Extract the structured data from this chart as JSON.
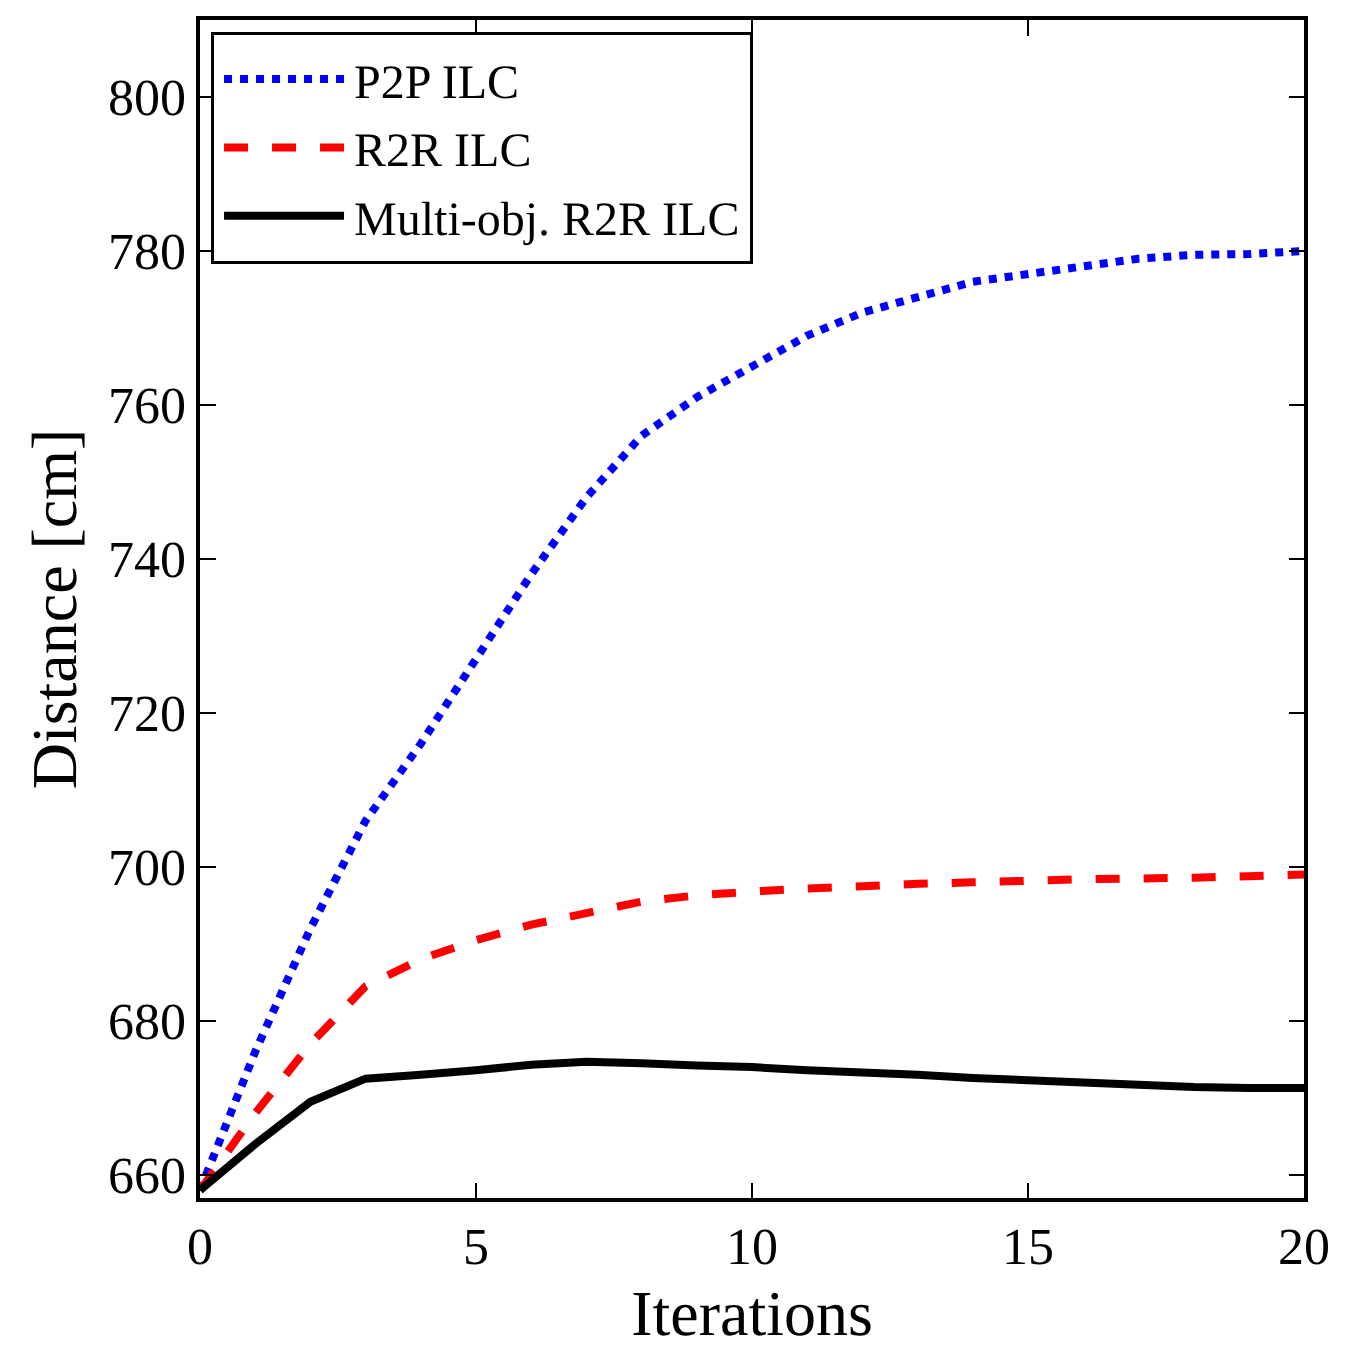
{
  "chart_data": {
    "type": "line",
    "xlabel": "Iterations",
    "ylabel": "Distance [cm]",
    "x": [
      0,
      1,
      2,
      3,
      4,
      5,
      6,
      7,
      8,
      9,
      10,
      11,
      12,
      13,
      14,
      15,
      16,
      17,
      18,
      19,
      20
    ],
    "xlim": [
      0,
      20
    ],
    "xticks": [
      0,
      5,
      10,
      15,
      20
    ],
    "ylim": [
      657,
      810
    ],
    "yticks": [
      660,
      680,
      700,
      720,
      740,
      760,
      780,
      800
    ],
    "legend": "top left",
    "marker": "none",
    "series": [
      {
        "name": "P2P ILC",
        "color": "#0000ff",
        "line_style": "dotted",
        "values": [
          658,
          676,
          692,
          706,
          716,
          727,
          738,
          748,
          756,
          761,
          765,
          769,
          772,
          774,
          776,
          777,
          778,
          779,
          779.5,
          779.6,
          780
        ]
      },
      {
        "name": "R2R ILC",
        "color": "#ff0000",
        "line_style": "dashed",
        "values": [
          658,
          668,
          677,
          684.5,
          688,
          690.5,
          692.5,
          694,
          695.5,
          696.3,
          696.8,
          697.2,
          697.5,
          697.8,
          698,
          698.2,
          698.4,
          698.5,
          698.6,
          698.8,
          699
        ]
      },
      {
        "name": "Multi-obj. R2R ILC",
        "color": "#000000",
        "line_style": "solid",
        "values": [
          658,
          664,
          669.5,
          672.5,
          673,
          673.6,
          674.3,
          674.7,
          674.5,
          674.2,
          674,
          673.6,
          673.3,
          673,
          672.6,
          672.3,
          672,
          671.7,
          671.4,
          671.3,
          671.3
        ]
      }
    ]
  }
}
